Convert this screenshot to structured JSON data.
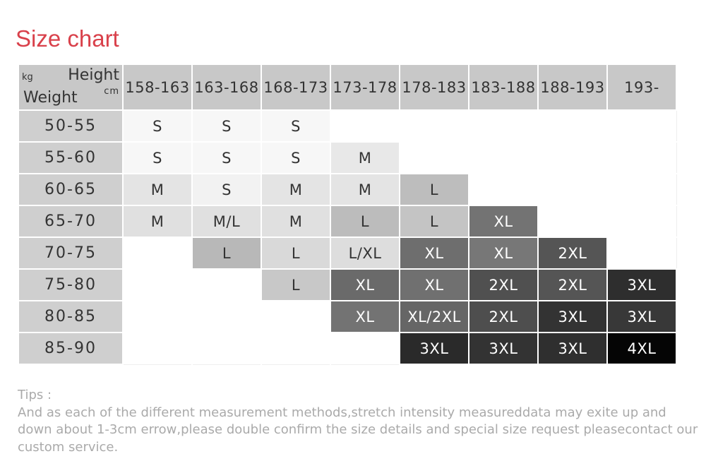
{
  "header": {
    "title": "Size chart"
  },
  "table": {
    "corner": {
      "kg": "kg",
      "height": "Height",
      "cm": "cm",
      "weight": "Weight"
    },
    "columns": [
      "158-163",
      "163-168",
      "168-173",
      "173-178",
      "178-183",
      "183-188",
      "188-193",
      "193-"
    ],
    "rows": [
      {
        "weight": "50-55",
        "cells": [
          {
            "text": "S",
            "bg": "#f7f7f7"
          },
          {
            "text": "S",
            "bg": "#f7f7f7"
          },
          {
            "text": "S",
            "bg": "#f7f7f7"
          },
          null,
          null,
          null,
          null,
          null
        ]
      },
      {
        "weight": "55-60",
        "cells": [
          {
            "text": "S",
            "bg": "#f7f7f7"
          },
          {
            "text": "S",
            "bg": "#f7f7f7"
          },
          {
            "text": "S",
            "bg": "#f7f7f7"
          },
          {
            "text": "M",
            "bg": "#e8e8e8"
          },
          null,
          null,
          null,
          null
        ]
      },
      {
        "weight": "60-65",
        "cells": [
          {
            "text": "M",
            "bg": "#e4e4e4"
          },
          {
            "text": "S",
            "bg": "#f2f2f2"
          },
          {
            "text": "M",
            "bg": "#e4e4e4"
          },
          {
            "text": "M",
            "bg": "#e4e4e4"
          },
          {
            "text": "L",
            "bg": "#bdbdbd"
          },
          null,
          null,
          null
        ]
      },
      {
        "weight": "65-70",
        "cells": [
          {
            "text": "M",
            "bg": "#e0e0e0"
          },
          {
            "text": "M/L",
            "bg": "#e0e0e0"
          },
          {
            "text": "M",
            "bg": "#e0e0e0"
          },
          {
            "text": "L",
            "bg": "#bcbcbc"
          },
          {
            "text": "L",
            "bg": "#c4c4c4"
          },
          {
            "text": "XL",
            "bg": "#737373"
          },
          null,
          null
        ]
      },
      {
        "weight": "70-75",
        "cells": [
          null,
          {
            "text": "L",
            "bg": "#b8b8b8"
          },
          {
            "text": "L",
            "bg": "#d9d9d9"
          },
          {
            "text": "L/XL",
            "bg": "#dddddd"
          },
          {
            "text": "XL",
            "bg": "#6e6e6e"
          },
          {
            "text": "XL",
            "bg": "#777777"
          },
          {
            "text": "2XL",
            "bg": "#555555"
          },
          null
        ]
      },
      {
        "weight": "75-80",
        "cells": [
          null,
          null,
          {
            "text": "L",
            "bg": "#c8c8c8"
          },
          {
            "text": "XL",
            "bg": "#6a6a6a"
          },
          {
            "text": "XL",
            "bg": "#707070"
          },
          {
            "text": "2XL",
            "bg": "#505050"
          },
          {
            "text": "2XL",
            "bg": "#555555"
          },
          {
            "text": "3XL",
            "bg": "#2e2e2e"
          }
        ]
      },
      {
        "weight": "80-85",
        "cells": [
          null,
          null,
          null,
          {
            "text": "XL",
            "bg": "#737373"
          },
          {
            "text": "XL/2XL",
            "bg": "#666666"
          },
          {
            "text": "2XL",
            "bg": "#4e4e4e"
          },
          {
            "text": "3XL",
            "bg": "#333333"
          },
          {
            "text": "3XL",
            "bg": "#383838"
          }
        ]
      },
      {
        "weight": "85-90",
        "cells": [
          null,
          null,
          null,
          null,
          {
            "text": "3XL",
            "bg": "#2a2a2a"
          },
          {
            "text": "3XL",
            "bg": "#333333"
          },
          {
            "text": "3XL",
            "bg": "#2f2f2f"
          },
          {
            "text": "4XL",
            "bg": "#050505"
          }
        ]
      }
    ]
  },
  "tips": {
    "label": "Tips :",
    "text": "And as each of the different measurement methods,stretch intensity measureddata may exite up and down about 1-3cm errow,please double confirm the size details and special size request pleasecontact our custom service."
  }
}
